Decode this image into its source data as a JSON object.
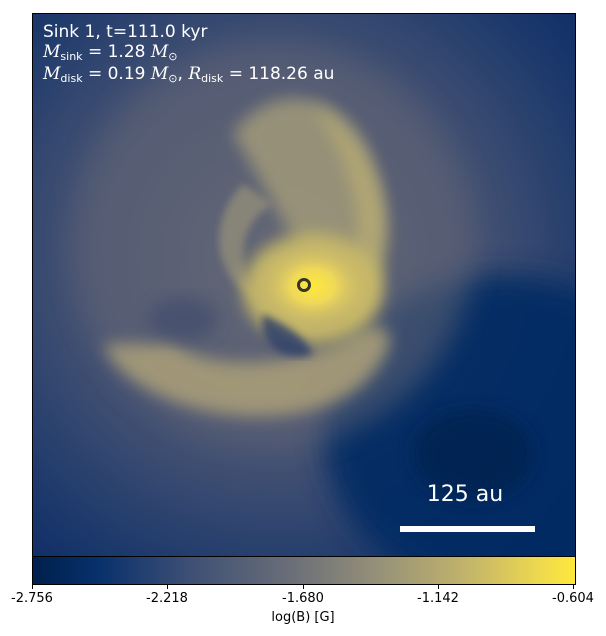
{
  "annotation": {
    "line1": "Sink 1, t=111.0 kyr",
    "msink_symbol": "M",
    "msink_sub": "sink",
    "msink_value": "= 1.28",
    "msun_symbol": "M",
    "msun_sub": "⊙",
    "mdisk_symbol": "M",
    "mdisk_sub": "disk",
    "mdisk_value": "= 0.19",
    "rdisk_symbol": "R",
    "rdisk_sub": "disk",
    "rdisk_value": "= 118.26 au"
  },
  "scale_bar": {
    "label": "125 au"
  },
  "colorbar": {
    "label": "log(B) [G]",
    "ticks": [
      "-2.756",
      "-2.218",
      "-1.680",
      "-1.142",
      "-0.604"
    ],
    "colormap": "cividis"
  },
  "colors": {
    "background_low": "#00204d",
    "mid": "#7c7b78",
    "high": "#fde93a",
    "sink_marker": "#3a3526"
  }
}
